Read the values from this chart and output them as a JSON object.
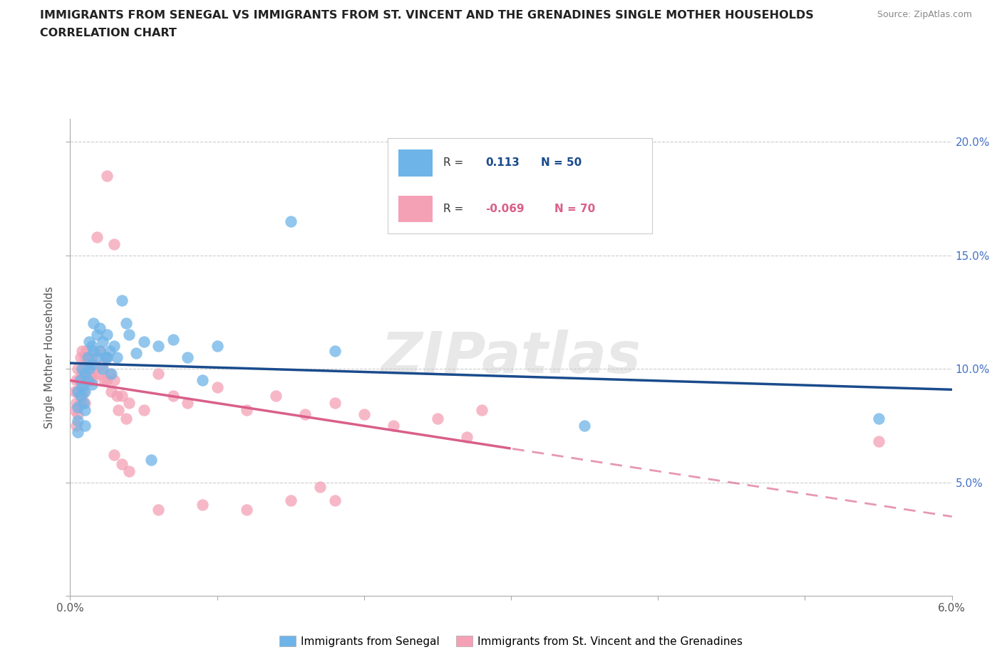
{
  "title_line1": "IMMIGRANTS FROM SENEGAL VS IMMIGRANTS FROM ST. VINCENT AND THE GRENADINES SINGLE MOTHER HOUSEHOLDS",
  "title_line2": "CORRELATION CHART",
  "source": "Source: ZipAtlas.com",
  "ylabel": "Single Mother Households",
  "xlim": [
    0.0,
    0.06
  ],
  "ylim": [
    0.0,
    0.21
  ],
  "blue_color": "#6EB4E8",
  "pink_color": "#F4A0B5",
  "blue_line_color": "#1A4B8C",
  "pink_line_color": "#D95F8A",
  "watermark": "ZIPatlas",
  "grid_color": "#CCCCCC",
  "legend_blue_label": "Immigrants from Senegal",
  "legend_pink_label": "Immigrants from St. Vincent and the Grenadines",
  "blue_scatter_x": [
    0.0005,
    0.0005,
    0.0005,
    0.0005,
    0.0007,
    0.0007,
    0.0008,
    0.0008,
    0.0009,
    0.001,
    0.001,
    0.001,
    0.001,
    0.0012,
    0.0012,
    0.0013,
    0.0013,
    0.0015,
    0.0015,
    0.0015,
    0.0016,
    0.0016,
    0.0018,
    0.0018,
    0.002,
    0.002,
    0.0022,
    0.0022,
    0.0024,
    0.0025,
    0.0025,
    0.0027,
    0.0028,
    0.003,
    0.0032,
    0.0035,
    0.0038,
    0.004,
    0.0045,
    0.005,
    0.0055,
    0.006,
    0.007,
    0.008,
    0.009,
    0.01,
    0.015,
    0.018,
    0.035,
    0.055
  ],
  "blue_scatter_y": [
    0.09,
    0.083,
    0.077,
    0.072,
    0.095,
    0.088,
    0.1,
    0.092,
    0.085,
    0.098,
    0.09,
    0.082,
    0.075,
    0.105,
    0.095,
    0.112,
    0.1,
    0.11,
    0.102,
    0.093,
    0.12,
    0.108,
    0.115,
    0.105,
    0.118,
    0.108,
    0.112,
    0.1,
    0.105,
    0.115,
    0.105,
    0.108,
    0.098,
    0.11,
    0.105,
    0.13,
    0.12,
    0.115,
    0.107,
    0.112,
    0.06,
    0.11,
    0.113,
    0.105,
    0.095,
    0.11,
    0.165,
    0.108,
    0.075,
    0.078
  ],
  "pink_scatter_x": [
    0.0003,
    0.0003,
    0.0004,
    0.0004,
    0.0004,
    0.0005,
    0.0005,
    0.0005,
    0.0006,
    0.0007,
    0.0007,
    0.0007,
    0.0008,
    0.0008,
    0.0008,
    0.0009,
    0.0009,
    0.001,
    0.001,
    0.001,
    0.0011,
    0.0011,
    0.0012,
    0.0013,
    0.0014,
    0.0015,
    0.0015,
    0.0016,
    0.0017,
    0.0018,
    0.002,
    0.002,
    0.0022,
    0.0023,
    0.0025,
    0.0025,
    0.0027,
    0.0028,
    0.003,
    0.0032,
    0.0033,
    0.0035,
    0.0038,
    0.004,
    0.005,
    0.006,
    0.007,
    0.008,
    0.01,
    0.012,
    0.014,
    0.016,
    0.018,
    0.02,
    0.022,
    0.025,
    0.027,
    0.003,
    0.0035,
    0.004,
    0.028,
    0.015,
    0.012,
    0.017,
    0.018,
    0.009,
    0.006,
    0.003,
    0.0025,
    0.055
  ],
  "pink_scatter_y": [
    0.09,
    0.082,
    0.095,
    0.085,
    0.075,
    0.1,
    0.09,
    0.08,
    0.095,
    0.105,
    0.095,
    0.085,
    0.108,
    0.098,
    0.088,
    0.1,
    0.09,
    0.105,
    0.095,
    0.085,
    0.108,
    0.098,
    0.102,
    0.095,
    0.098,
    0.105,
    0.095,
    0.102,
    0.098,
    0.158,
    0.108,
    0.098,
    0.102,
    0.095,
    0.105,
    0.095,
    0.098,
    0.09,
    0.095,
    0.088,
    0.082,
    0.088,
    0.078,
    0.085,
    0.082,
    0.098,
    0.088,
    0.085,
    0.092,
    0.082,
    0.088,
    0.08,
    0.085,
    0.08,
    0.075,
    0.078,
    0.07,
    0.062,
    0.058,
    0.055,
    0.082,
    0.042,
    0.038,
    0.048,
    0.042,
    0.04,
    0.038,
    0.155,
    0.185,
    0.068
  ]
}
